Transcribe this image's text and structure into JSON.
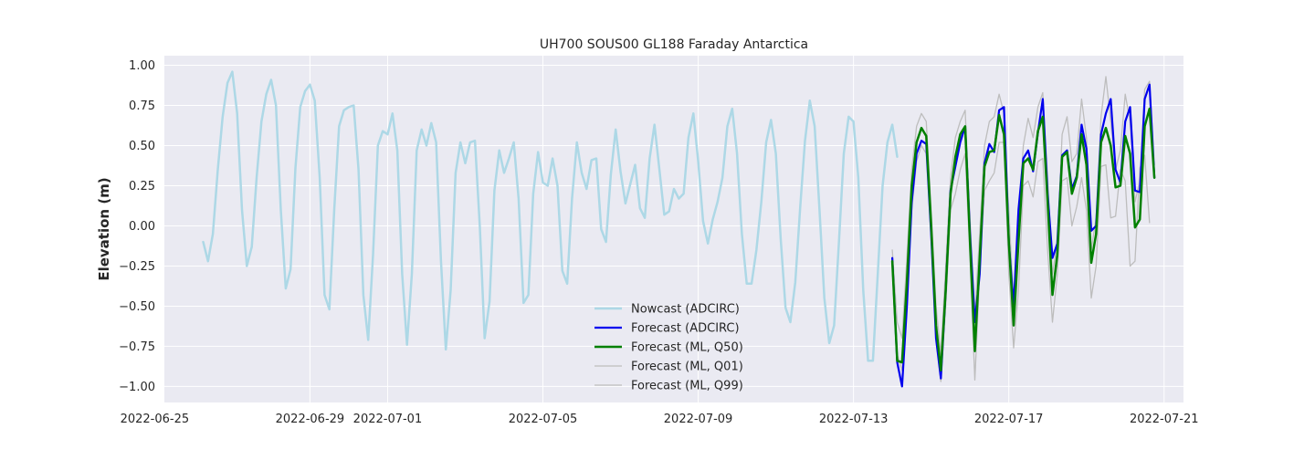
{
  "chart_data": {
    "type": "line",
    "title": "UH700 SOUS00 GL188 Faraday Antarctica",
    "xlabel": "",
    "ylabel": "Elevation (m)",
    "xlim": [
      "2022-06-25T06:00",
      "2022-07-21T12:00"
    ],
    "ylim": [
      -1.1,
      1.06
    ],
    "grid": true,
    "legend_position": "lower-center",
    "x_ticks": [
      "2022-06-25",
      "2022-06-29",
      "2022-07-01",
      "2022-07-05",
      "2022-07-09",
      "2022-07-13",
      "2022-07-17",
      "2022-07-21"
    ],
    "y_ticks": [
      "1.00",
      "0.75",
      "0.50",
      "0.25",
      "0.00",
      "−0.25",
      "−0.50",
      "−0.75",
      "−1.00"
    ],
    "series": [
      {
        "name": "Nowcast (ADCIRC)",
        "color": "#add8e6",
        "x_start": "2022-06-26T06:00",
        "step_hours": 3,
        "values": [
          -0.1,
          -0.22,
          -0.05,
          0.35,
          0.68,
          0.89,
          0.96,
          0.7,
          0.1,
          -0.25,
          -0.13,
          0.3,
          0.65,
          0.82,
          0.91,
          0.75,
          0.1,
          -0.39,
          -0.27,
          0.36,
          0.74,
          0.84,
          0.88,
          0.78,
          0.3,
          -0.43,
          -0.52,
          0.1,
          0.62,
          0.72,
          0.74,
          0.75,
          0.35,
          -0.43,
          -0.71,
          -0.18,
          0.5,
          0.59,
          0.57,
          0.7,
          0.47,
          -0.3,
          -0.74,
          -0.3,
          0.47,
          0.6,
          0.5,
          0.64,
          0.52,
          -0.22,
          -0.77,
          -0.4,
          0.33,
          0.52,
          0.39,
          0.52,
          0.53,
          0.0,
          -0.7,
          -0.47,
          0.22,
          0.47,
          0.33,
          0.42,
          0.52,
          0.17,
          -0.48,
          -0.43,
          0.2,
          0.46,
          0.27,
          0.25,
          0.42,
          0.25,
          -0.28,
          -0.36,
          0.17,
          0.52,
          0.33,
          0.23,
          0.41,
          0.42,
          -0.02,
          -0.1,
          0.32,
          0.6,
          0.34,
          0.14,
          0.26,
          0.38,
          0.11,
          0.05,
          0.42,
          0.63,
          0.35,
          0.07,
          0.09,
          0.23,
          0.17,
          0.2,
          0.55,
          0.7,
          0.4,
          0.03,
          -0.11,
          0.04,
          0.15,
          0.3,
          0.62,
          0.73,
          0.45,
          -0.05,
          -0.36,
          -0.36,
          -0.15,
          0.15,
          0.52,
          0.66,
          0.45,
          -0.08,
          -0.51,
          -0.6,
          -0.35,
          0.11,
          0.53,
          0.78,
          0.62,
          0.1,
          -0.45,
          -0.73,
          -0.62,
          -0.1,
          0.45,
          0.68,
          0.65,
          0.3,
          -0.4,
          -0.84,
          -0.84,
          -0.3,
          0.25,
          0.52,
          0.63,
          0.43
        ]
      },
      {
        "name": "Forecast (ADCIRC)",
        "color": "#0000ee",
        "x_start": "2022-07-14T00:00",
        "step_hours": 3,
        "values": [
          -0.2,
          -0.85,
          -1.0,
          -0.5,
          0.15,
          0.45,
          0.53,
          0.51,
          -0.05,
          -0.7,
          -0.95,
          -0.4,
          0.22,
          0.37,
          0.52,
          0.62,
          -0.05,
          -0.6,
          -0.3,
          0.39,
          0.51,
          0.46,
          0.72,
          0.74,
          -0.1,
          -0.5,
          0.1,
          0.42,
          0.47,
          0.34,
          0.58,
          0.79,
          0.2,
          -0.2,
          -0.11,
          0.44,
          0.47,
          0.23,
          0.31,
          0.63,
          0.48,
          -0.03,
          0.0,
          0.57,
          0.7,
          0.79,
          0.35,
          0.27,
          0.65,
          0.74,
          0.22,
          0.21,
          0.79,
          0.88,
          0.3
        ]
      },
      {
        "name": "Forecast (ML, Q50)",
        "color": "#008000",
        "x_start": "2022-07-14T00:00",
        "step_hours": 3,
        "values": [
          -0.22,
          -0.84,
          -0.85,
          -0.35,
          0.25,
          0.52,
          0.61,
          0.56,
          0.0,
          -0.62,
          -0.9,
          -0.4,
          0.2,
          0.43,
          0.57,
          0.62,
          -0.1,
          -0.78,
          -0.2,
          0.37,
          0.46,
          0.47,
          0.69,
          0.57,
          -0.1,
          -0.62,
          -0.1,
          0.39,
          0.42,
          0.35,
          0.59,
          0.68,
          0.15,
          -0.43,
          -0.18,
          0.43,
          0.46,
          0.2,
          0.3,
          0.57,
          0.38,
          -0.23,
          -0.05,
          0.52,
          0.61,
          0.5,
          0.24,
          0.25,
          0.56,
          0.45,
          -0.01,
          0.04,
          0.62,
          0.73,
          0.3
        ]
      },
      {
        "name": "Forecast (ML, Q01)",
        "color": "#bdbdbd",
        "x_start": "2022-07-14T00:00",
        "step_hours": 3,
        "values": [
          -0.25,
          -0.8,
          -0.9,
          -0.45,
          0.1,
          0.4,
          0.5,
          0.45,
          -0.1,
          -0.7,
          -0.97,
          -0.5,
          0.1,
          0.2,
          0.35,
          0.45,
          -0.2,
          -0.96,
          -0.3,
          0.22,
          0.28,
          0.33,
          0.52,
          0.52,
          -0.3,
          -0.76,
          -0.4,
          0.25,
          0.28,
          0.18,
          0.4,
          0.42,
          -0.15,
          -0.6,
          -0.3,
          0.28,
          0.3,
          0.0,
          0.12,
          0.3,
          0.1,
          -0.45,
          -0.25,
          0.37,
          0.38,
          0.05,
          0.06,
          0.35,
          0.28,
          -0.25,
          -0.22,
          0.36,
          0.44,
          0.02
        ]
      },
      {
        "name": "Forecast (ML, Q99)",
        "color": "#bdbdbd",
        "x_start": "2022-07-14T00:00",
        "step_hours": 3,
        "values": [
          -0.15,
          -0.6,
          -0.7,
          -0.2,
          0.35,
          0.62,
          0.7,
          0.65,
          0.1,
          -0.5,
          -0.8,
          -0.25,
          0.3,
          0.55,
          0.65,
          0.72,
          0.05,
          -0.55,
          -0.05,
          0.5,
          0.65,
          0.68,
          0.82,
          0.7,
          0.1,
          -0.5,
          0.05,
          0.5,
          0.67,
          0.55,
          0.74,
          0.83,
          0.3,
          -0.3,
          -0.1,
          0.57,
          0.68,
          0.4,
          0.45,
          0.79,
          0.55,
          -0.15,
          0.05,
          0.68,
          0.93,
          0.65,
          0.35,
          0.47,
          0.82,
          0.65,
          0.15,
          0.28,
          0.85,
          0.9,
          0.38
        ]
      }
    ]
  }
}
